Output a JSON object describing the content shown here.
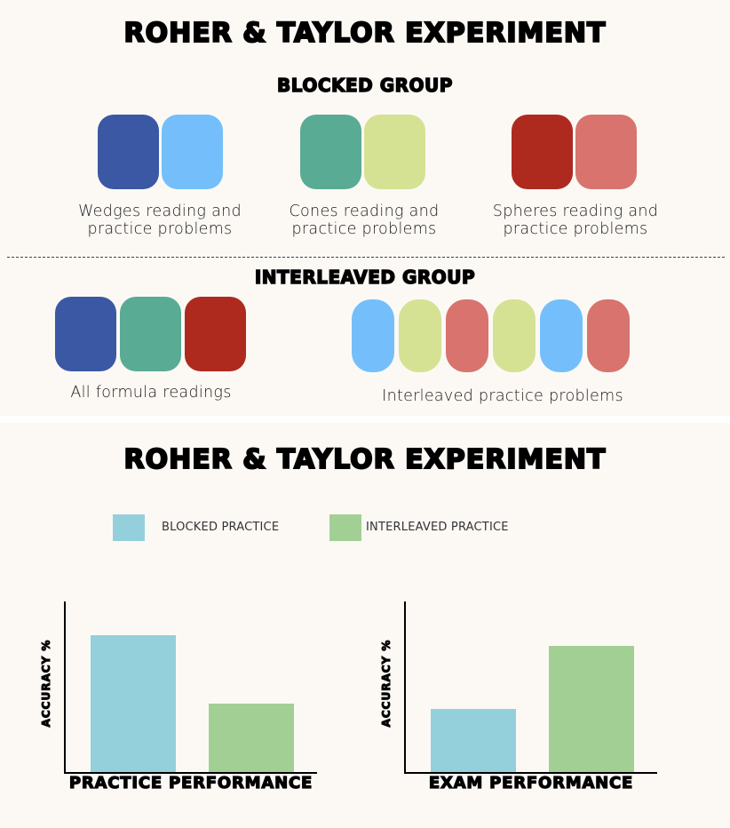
{
  "top": {
    "title": "ROHER & TAYLOR EXPERIMENT",
    "blocked": {
      "heading": "BLOCKED GROUP",
      "groups": [
        {
          "label_line1": "Wedges reading and",
          "label_line2": "practice problems",
          "colors": [
            "#3b58a5",
            "#74bffb"
          ]
        },
        {
          "label_line1": "Cones reading and",
          "label_line2": "practice problems",
          "colors": [
            "#5aab93",
            "#d5e294"
          ]
        },
        {
          "label_line1": "Spheres reading and",
          "label_line2": "practice problems",
          "colors": [
            "#ae2a1f",
            "#d8736e"
          ]
        }
      ]
    },
    "interleaved": {
      "heading": "INTERLEAVED GROUP",
      "readings_label": "All formula readings",
      "readings_colors": [
        "#3b58a5",
        "#5aab93",
        "#ae2a1f"
      ],
      "practice_label": "Interleaved practice problems",
      "practice_colors": [
        "#74bffb",
        "#d5e294",
        "#d8736e",
        "#d5e294",
        "#74bffb",
        "#d8736e"
      ]
    }
  },
  "bottom": {
    "title": "ROHER & TAYLOR EXPERIMENT",
    "legend": [
      {
        "label": "BLOCKED PRACTICE",
        "color": "#94d0dc"
      },
      {
        "label": "INTERLEAVED PRACTICE",
        "color": "#a2cf94"
      }
    ]
  },
  "chart_data": [
    {
      "type": "bar",
      "categories": [
        "BLOCKED PRACTICE",
        "INTERLEAVED PRACTICE"
      ],
      "values": [
        80,
        40
      ],
      "colors": [
        "#94d0dc",
        "#a2cf94"
      ],
      "ylim": [
        0,
        100
      ],
      "title": "",
      "xlabel": "PRACTICE PERFORMANCE",
      "ylabel": "ACCURACY %"
    },
    {
      "type": "bar",
      "categories": [
        "BLOCKED PRACTICE",
        "INTERLEAVED PRACTICE"
      ],
      "values": [
        37,
        74
      ],
      "colors": [
        "#94d0dc",
        "#a2cf94"
      ],
      "ylim": [
        0,
        100
      ],
      "title": "",
      "xlabel": "EXAM PERFORMANCE",
      "ylabel": "ACCURACY %"
    }
  ]
}
